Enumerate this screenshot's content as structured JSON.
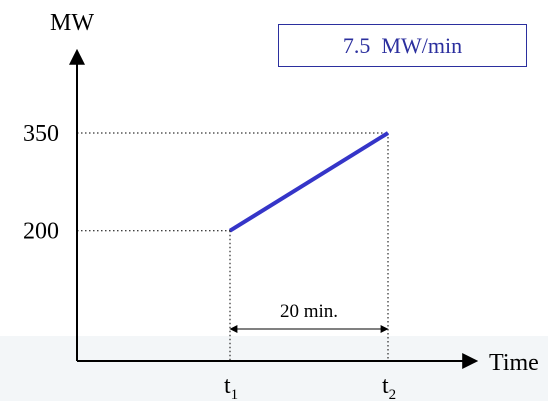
{
  "chart_data": {
    "type": "line",
    "title": "",
    "xlabel": "Time",
    "ylabel": "MW",
    "x_tick_labels": [
      {
        "base": "t",
        "sub": "1"
      },
      {
        "base": "t",
        "sub": "2"
      }
    ],
    "y_ticks": [
      200,
      350
    ],
    "ylim": [
      0,
      430
    ],
    "series": [
      {
        "points": [
          {
            "x": 0,
            "y": 200
          },
          {
            "x": 20,
            "y": 350
          }
        ],
        "color": "#3535c8"
      }
    ],
    "annotations": {
      "rate_label": "7.5  MW/min",
      "interval_label": "20 min."
    },
    "guides": {
      "dotted_lines": true
    }
  }
}
